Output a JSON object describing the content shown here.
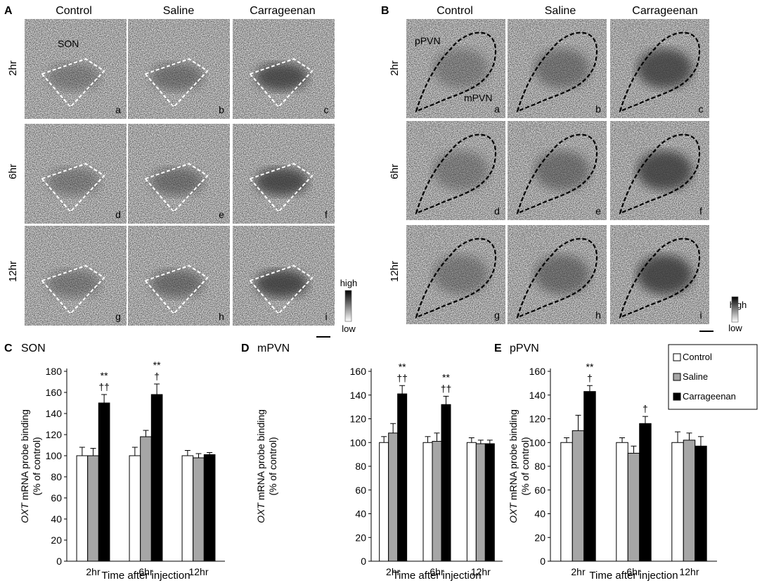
{
  "panel_a": {
    "letter": "A",
    "columns": [
      "Control",
      "Saline",
      "Carrageenan"
    ],
    "rows": [
      "2hr",
      "6hr",
      "12hr"
    ],
    "region_label": "SON",
    "tile_letters": [
      "a",
      "b",
      "c",
      "d",
      "e",
      "f",
      "g",
      "h",
      "i"
    ],
    "scale_high": "high",
    "scale_low": "low"
  },
  "panel_b": {
    "letter": "B",
    "columns": [
      "Control",
      "Saline",
      "Carrageenan"
    ],
    "rows": [
      "2hr",
      "6hr",
      "12hr"
    ],
    "label_ppvn": "pPVN",
    "label_mpvn": "mPVN",
    "tile_letters": [
      "a",
      "b",
      "c",
      "d",
      "e",
      "f",
      "g",
      "h",
      "i"
    ],
    "scale_high": "high",
    "scale_low": "low"
  },
  "legend": {
    "entries": [
      {
        "name": "Control",
        "color": "#ffffff"
      },
      {
        "name": "Saline",
        "color": "#a6a6a6"
      },
      {
        "name": "Carrageenan",
        "color": "#000000"
      }
    ]
  },
  "chart_data": [
    {
      "type": "bar",
      "panel": "C",
      "title": "SON",
      "ylabel_italic": "OXT",
      "ylabel_rest": " mRNA probe binding",
      "ylabel_line2": "(% of control)",
      "xlabel": "Time after injection",
      "categories": [
        "2hr",
        "6hr",
        "12hr"
      ],
      "ylim": [
        0,
        180
      ],
      "yticks": [
        0,
        20,
        40,
        60,
        80,
        100,
        120,
        140,
        160,
        180
      ],
      "series": [
        {
          "name": "Control",
          "values": [
            100,
            100,
            100
          ],
          "errors": [
            8,
            8,
            5
          ]
        },
        {
          "name": "Saline",
          "values": [
            100,
            118,
            98
          ],
          "errors": [
            7,
            6,
            4
          ]
        },
        {
          "name": "Carrageenan",
          "values": [
            150,
            158,
            101
          ],
          "errors": [
            8,
            10,
            2
          ]
        }
      ],
      "annotations": [
        {
          "category": 0,
          "series": 2,
          "lines": [
            "**",
            "††"
          ]
        },
        {
          "category": 1,
          "series": 2,
          "lines": [
            "**",
            "†"
          ]
        }
      ]
    },
    {
      "type": "bar",
      "panel": "D",
      "title": "mPVN",
      "ylabel_italic": "OXT",
      "ylabel_rest": " mRNA probe binding",
      "ylabel_line2": "(% of control)",
      "xlabel": "Time after injection",
      "categories": [
        "2hr",
        "6hr",
        "12hr"
      ],
      "ylim": [
        0,
        160
      ],
      "yticks": [
        0,
        20,
        40,
        60,
        80,
        100,
        120,
        140,
        160
      ],
      "series": [
        {
          "name": "Control",
          "values": [
            100,
            100,
            100
          ],
          "errors": [
            5,
            5,
            4
          ]
        },
        {
          "name": "Saline",
          "values": [
            108,
            101,
            99
          ],
          "errors": [
            8,
            7,
            3
          ]
        },
        {
          "name": "Carrageenan",
          "values": [
            141,
            132,
            99
          ],
          "errors": [
            7,
            7,
            3
          ]
        }
      ],
      "annotations": [
        {
          "category": 0,
          "series": 2,
          "lines": [
            "**",
            "††"
          ]
        },
        {
          "category": 1,
          "series": 2,
          "lines": [
            "**",
            "††"
          ]
        }
      ]
    },
    {
      "type": "bar",
      "panel": "E",
      "title": "pPVN",
      "ylabel_italic": "OXT",
      "ylabel_rest": " mRNA probe binding",
      "ylabel_line2": "(% of control)",
      "xlabel": "Time after injection",
      "categories": [
        "2hr",
        "6hr",
        "12hr"
      ],
      "ylim": [
        0,
        160
      ],
      "yticks": [
        0,
        20,
        40,
        60,
        80,
        100,
        120,
        140,
        160
      ],
      "series": [
        {
          "name": "Control",
          "values": [
            100,
            100,
            100
          ],
          "errors": [
            4,
            4,
            9
          ]
        },
        {
          "name": "Saline",
          "values": [
            110,
            91,
            102
          ],
          "errors": [
            13,
            6,
            6
          ]
        },
        {
          "name": "Carrageenan",
          "values": [
            143,
            116,
            97
          ],
          "errors": [
            5,
            6,
            8
          ]
        }
      ],
      "annotations": [
        {
          "category": 0,
          "series": 2,
          "lines": [
            "**",
            "†"
          ]
        },
        {
          "category": 1,
          "series": 2,
          "lines": [
            "†"
          ]
        }
      ]
    }
  ]
}
